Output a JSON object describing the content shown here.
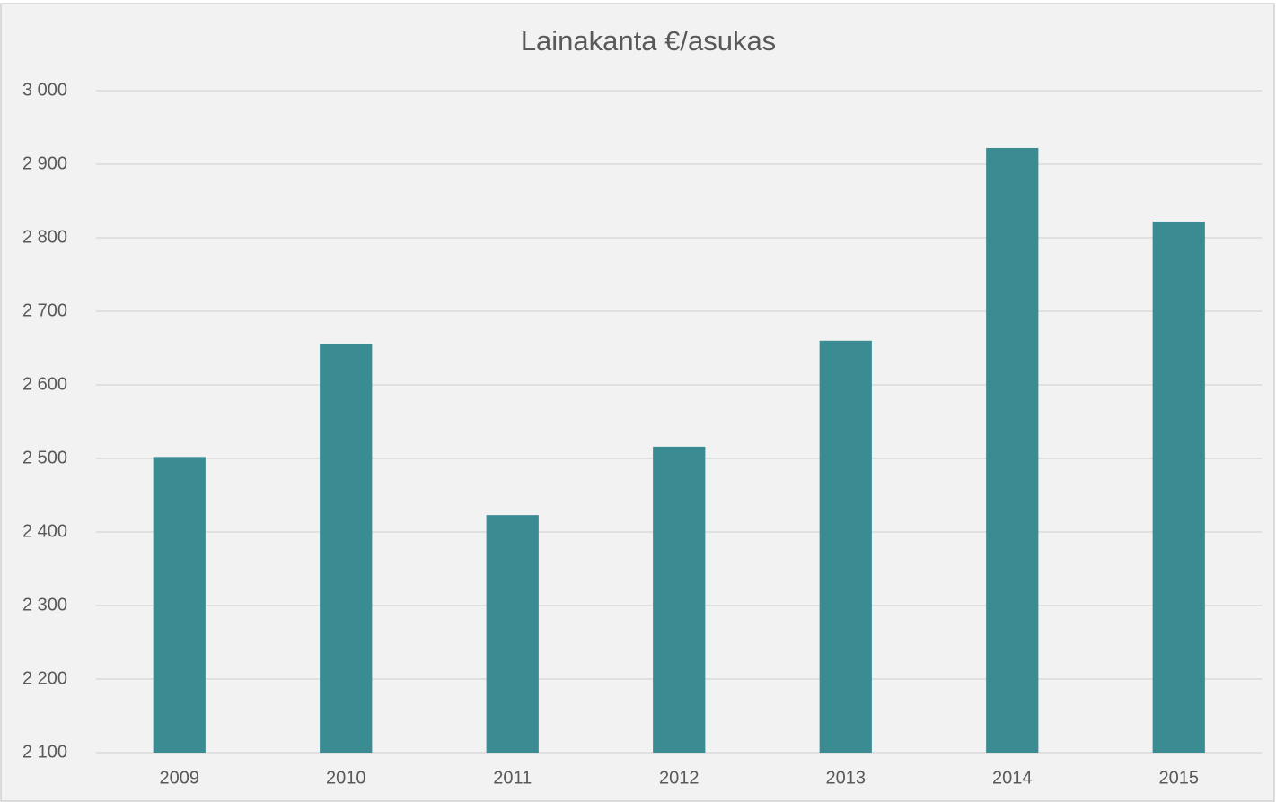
{
  "chart_data": {
    "type": "bar",
    "title": "Lainakanta €/asukas",
    "categories": [
      "2009",
      "2010",
      "2011",
      "2012",
      "2013",
      "2014",
      "2015"
    ],
    "values": [
      2502,
      2655,
      2423,
      2516,
      2660,
      2922,
      2822
    ],
    "color": "#3b8b92",
    "ylim": [
      2100,
      3000
    ],
    "yticks": [
      {
        "value": 2100,
        "label": "2 100"
      },
      {
        "value": 2200,
        "label": "2 200"
      },
      {
        "value": 2300,
        "label": "2 300"
      },
      {
        "value": 2400,
        "label": "2 400"
      },
      {
        "value": 2500,
        "label": "2 500"
      },
      {
        "value": 2600,
        "label": "2 600"
      },
      {
        "value": 2700,
        "label": "2 700"
      },
      {
        "value": 2800,
        "label": "2 800"
      },
      {
        "value": 2900,
        "label": "2 900"
      },
      {
        "value": 3000,
        "label": "3 000"
      }
    ],
    "grid": true
  }
}
